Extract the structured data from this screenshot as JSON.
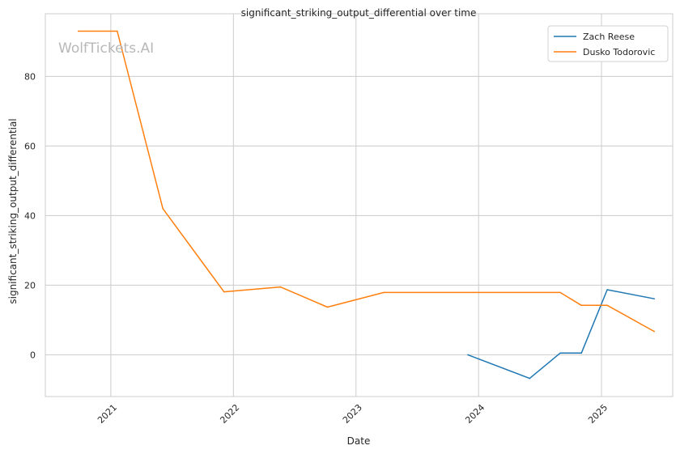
{
  "chart_data": {
    "type": "line",
    "title": "significant_striking_output_differential over time",
    "xlabel": "Date",
    "ylabel": "significant_striking_output_differential",
    "watermark": "WolfTickets.AI",
    "x_ticks": [
      "2021",
      "2022",
      "2023",
      "2024",
      "2025"
    ],
    "y_ticks": [
      "0",
      "20",
      "40",
      "60",
      "80"
    ],
    "xlim": [
      "2020-06-20",
      "2025-08-01"
    ],
    "ylim": [
      -12,
      98
    ],
    "grid": true,
    "legend_position": "top-right",
    "series": [
      {
        "name": "Zach Reese",
        "color": "#1f77b4",
        "points": [
          {
            "x": "2023-11-30",
            "y": 0
          },
          {
            "x": "2024-06-01",
            "y": -6.8
          },
          {
            "x": "2024-08-31",
            "y": 0.5
          },
          {
            "x": "2024-11-02",
            "y": 0.5
          },
          {
            "x": "2025-01-18",
            "y": 18.7
          },
          {
            "x": "2025-06-07",
            "y": 16.1
          }
        ]
      },
      {
        "name": "Dusko Todorovic",
        "color": "#ff7f0e",
        "points": [
          {
            "x": "2020-09-26",
            "y": 93
          },
          {
            "x": "2021-01-20",
            "y": 93
          },
          {
            "x": "2021-06-05",
            "y": 42
          },
          {
            "x": "2021-12-04",
            "y": 18.1
          },
          {
            "x": "2022-05-21",
            "y": 19.5
          },
          {
            "x": "2022-10-08",
            "y": 13.7
          },
          {
            "x": "2023-03-25",
            "y": 17.9
          },
          {
            "x": "2024-08-31",
            "y": 17.9
          },
          {
            "x": "2024-11-02",
            "y": 14.2
          },
          {
            "x": "2025-01-18",
            "y": 14.2
          },
          {
            "x": "2025-06-07",
            "y": 6.7
          }
        ]
      }
    ]
  }
}
